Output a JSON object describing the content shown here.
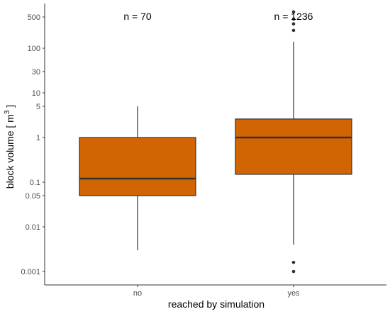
{
  "chart_data": {
    "type": "box",
    "xlabel": "reached by simulation",
    "ylabel": {
      "main": "block volume [ m",
      "superscript": "3",
      "close": " ]"
    },
    "y_scale": "log10",
    "ylim": [
      0.0005,
      1000
    ],
    "y_ticks": [
      {
        "value": 0.001,
        "label": "0.001"
      },
      {
        "value": 0.01,
        "label": "0.01"
      },
      {
        "value": 0.05,
        "label": "0.05"
      },
      {
        "value": 0.1,
        "label": "0.1"
      },
      {
        "value": 1,
        "label": "1"
      },
      {
        "value": 5,
        "label": "5"
      },
      {
        "value": 10,
        "label": "10"
      },
      {
        "value": 30,
        "label": "30"
      },
      {
        "value": 100,
        "label": "100"
      },
      {
        "value": 500,
        "label": "500"
      }
    ],
    "grid": false,
    "fill_color": "#D16503",
    "line_color": "#333333",
    "categories": [
      "no",
      "yes"
    ],
    "boxes": [
      {
        "category": "no",
        "annotation": "n = 70",
        "min": 0.003,
        "q1": 0.05,
        "median": 0.12,
        "q3": 1.0,
        "max": 5.0,
        "outliers": []
      },
      {
        "category": "yes",
        "annotation": "n = 1236",
        "min": 0.004,
        "q1": 0.15,
        "median": 1.0,
        "q3": 2.6,
        "max": 140,
        "outliers": [
          0.001,
          0.0016,
          250,
          350,
          450,
          650
        ]
      }
    ]
  }
}
